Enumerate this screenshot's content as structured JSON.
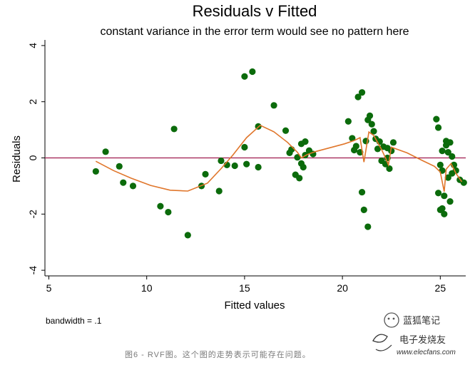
{
  "chart_data": {
    "type": "scatter",
    "title": "Residuals v Fitted",
    "subtitle": "constant variance in the error term would see no pattern here",
    "xlabel": "Fitted values",
    "ylabel": "Residuals",
    "xlim": [
      4.8,
      26.3
    ],
    "ylim": [
      -4.2,
      4.2
    ],
    "x_ticks": [
      5,
      10,
      15,
      20,
      25
    ],
    "y_ticks": [
      -4,
      -2,
      0,
      2,
      4
    ],
    "reference_line": {
      "y": 0,
      "color": "#9e1b4e"
    },
    "point_color": "#0b6b0b",
    "smooth_color": "#e0762b",
    "note": "bandwidth = .1",
    "points": [
      [
        7.4,
        -0.48
      ],
      [
        7.9,
        0.22
      ],
      [
        8.6,
        -0.3
      ],
      [
        8.8,
        -0.88
      ],
      [
        9.3,
        -1.0
      ],
      [
        10.7,
        -1.72
      ],
      [
        11.1,
        -1.93
      ],
      [
        11.4,
        1.03
      ],
      [
        12.1,
        -2.75
      ],
      [
        12.8,
        -1.0
      ],
      [
        13.0,
        -0.58
      ],
      [
        13.7,
        -1.18
      ],
      [
        13.8,
        -0.1
      ],
      [
        14.1,
        -0.25
      ],
      [
        14.5,
        -0.28
      ],
      [
        15.0,
        2.9
      ],
      [
        15.0,
        0.38
      ],
      [
        15.1,
        -0.22
      ],
      [
        15.4,
        3.07
      ],
      [
        15.7,
        1.12
      ],
      [
        15.7,
        -0.33
      ],
      [
        16.5,
        1.87
      ],
      [
        17.1,
        0.97
      ],
      [
        17.3,
        0.18
      ],
      [
        17.4,
        0.3
      ],
      [
        17.6,
        -0.6
      ],
      [
        17.7,
        0.02
      ],
      [
        17.8,
        -0.72
      ],
      [
        17.9,
        0.5
      ],
      [
        17.9,
        -0.2
      ],
      [
        18.0,
        -0.33
      ],
      [
        18.1,
        0.58
      ],
      [
        18.1,
        0.1
      ],
      [
        18.3,
        0.26
      ],
      [
        18.5,
        0.14
      ],
      [
        20.3,
        1.3
      ],
      [
        20.5,
        0.7
      ],
      [
        20.6,
        0.28
      ],
      [
        20.7,
        0.42
      ],
      [
        20.8,
        2.17
      ],
      [
        20.9,
        0.2
      ],
      [
        21.0,
        2.33
      ],
      [
        21.0,
        -1.22
      ],
      [
        21.1,
        -1.85
      ],
      [
        21.2,
        0.6
      ],
      [
        21.3,
        -2.45
      ],
      [
        21.3,
        1.35
      ],
      [
        21.4,
        1.5
      ],
      [
        21.5,
        1.2
      ],
      [
        21.6,
        0.95
      ],
      [
        21.7,
        0.68
      ],
      [
        21.8,
        0.32
      ],
      [
        21.9,
        0.58
      ],
      [
        22.0,
        -0.1
      ],
      [
        22.1,
        0.4
      ],
      [
        22.2,
        -0.22
      ],
      [
        22.3,
        0.0
      ],
      [
        22.4,
        -0.38
      ],
      [
        22.5,
        0.25
      ],
      [
        22.6,
        0.55
      ],
      [
        22.3,
        0.35
      ],
      [
        24.8,
        1.38
      ],
      [
        24.9,
        1.08
      ],
      [
        24.9,
        -1.25
      ],
      [
        25.0,
        -1.85
      ],
      [
        25.0,
        -0.25
      ],
      [
        25.1,
        -0.45
      ],
      [
        25.1,
        0.25
      ],
      [
        25.2,
        -1.35
      ],
      [
        25.2,
        -2.0
      ],
      [
        25.3,
        0.6
      ],
      [
        25.3,
        0.45
      ],
      [
        25.4,
        0.2
      ],
      [
        25.5,
        -1.55
      ],
      [
        25.5,
        0.55
      ],
      [
        25.6,
        0.05
      ],
      [
        25.7,
        -0.25
      ],
      [
        25.8,
        -0.45
      ],
      [
        26.0,
        -0.78
      ],
      [
        26.2,
        -0.88
      ],
      [
        25.1,
        -1.8
      ],
      [
        25.4,
        -0.7
      ],
      [
        25.6,
        -0.55
      ]
    ],
    "smooth_line": [
      [
        7.4,
        -0.12
      ],
      [
        8.3,
        -0.45
      ],
      [
        9.2,
        -0.72
      ],
      [
        10.2,
        -0.98
      ],
      [
        11.2,
        -1.15
      ],
      [
        12.1,
        -1.18
      ],
      [
        13.1,
        -0.9
      ],
      [
        13.8,
        -0.38
      ],
      [
        14.4,
        0.1
      ],
      [
        15.1,
        0.72
      ],
      [
        15.8,
        1.16
      ],
      [
        16.5,
        0.93
      ],
      [
        17.2,
        0.55
      ],
      [
        17.7,
        0.2
      ],
      [
        17.9,
        0.0
      ],
      [
        18.2,
        0.12
      ],
      [
        18.6,
        0.22
      ],
      [
        19.3,
        0.35
      ],
      [
        20.1,
        0.5
      ],
      [
        20.6,
        0.62
      ],
      [
        20.9,
        0.72
      ],
      [
        21.1,
        -0.15
      ],
      [
        21.35,
        0.92
      ],
      [
        21.6,
        0.8
      ],
      [
        21.8,
        0.55
      ],
      [
        22.0,
        0.3
      ],
      [
        22.2,
        0.0
      ],
      [
        22.35,
        -0.25
      ],
      [
        22.5,
        0.38
      ],
      [
        23.3,
        0.18
      ],
      [
        24.1,
        -0.1
      ],
      [
        24.7,
        -0.3
      ],
      [
        25.0,
        -0.5
      ],
      [
        25.2,
        -1.2
      ],
      [
        25.3,
        -0.4
      ],
      [
        25.55,
        -0.2
      ],
      [
        25.8,
        -0.55
      ],
      [
        26.1,
        -0.85
      ]
    ]
  },
  "watermark": {
    "top_text": "蓝狐笔记",
    "bottom_text": "电子发烧友",
    "url": "www.elecfans.com"
  },
  "caption": "图6 - RVF图。这个图的走势表示可能存在问题。"
}
